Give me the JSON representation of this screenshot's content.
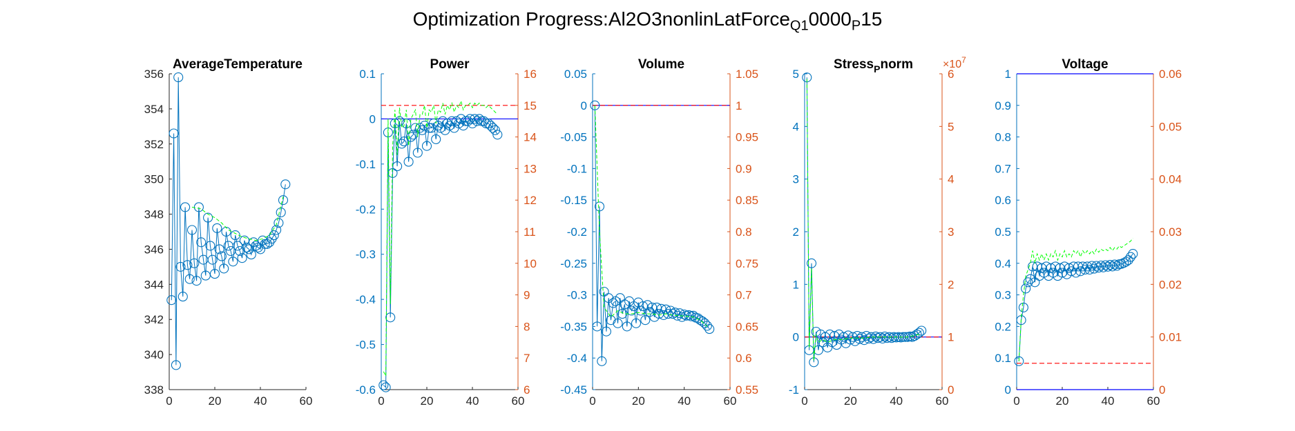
{
  "figure": {
    "title_prefix": "Optimization Progress:Al2O3nonlinLatForce",
    "title_sub1": "Q1",
    "title_mid": "0000",
    "title_sub2": "P",
    "title_suffix": "15"
  },
  "colors": {
    "left_axis": "#0072BD",
    "right_axis": "#D95319",
    "marker_line": "#0072BD",
    "green_dash": "#00FF00",
    "blue_line": "#0000FF",
    "red_dash": "#FF0000"
  },
  "chart_data": [
    {
      "type": "line",
      "title": "AverageTemperature",
      "xlim": [
        0,
        60
      ],
      "xticks": [
        0,
        20,
        40,
        60
      ],
      "ylim": [
        338,
        356
      ],
      "yticks": [
        338,
        340,
        342,
        344,
        346,
        348,
        350,
        352,
        354,
        356
      ],
      "series": [
        {
          "kind": "markers",
          "x": [
            1,
            2,
            3,
            4,
            5,
            6,
            7,
            8,
            9,
            10,
            11,
            12,
            13,
            14,
            15,
            16,
            17,
            18,
            19,
            20,
            21,
            22,
            23,
            24,
            25,
            26,
            27,
            28,
            29,
            30,
            31,
            32,
            33,
            34,
            35,
            36,
            37,
            38,
            39,
            40,
            41,
            42,
            43,
            44,
            45,
            46,
            47,
            48,
            49,
            50,
            51
          ],
          "y": [
            343.1,
            352.6,
            339.4,
            355.8,
            345.0,
            343.3,
            348.4,
            345.1,
            344.3,
            347.1,
            345.2,
            344.2,
            348.4,
            346.4,
            345.4,
            344.5,
            347.8,
            346.2,
            345.4,
            344.6,
            347.2,
            346.0,
            345.6,
            344.9,
            347.0,
            346.2,
            345.9,
            345.3,
            346.8,
            346.2,
            345.9,
            345.5,
            346.5,
            346.1,
            346.0,
            345.7,
            346.4,
            346.2,
            346.1,
            346.0,
            346.5,
            346.3,
            346.3,
            346.4,
            346.6,
            346.8,
            347.1,
            347.5,
            348.1,
            348.8,
            349.7
          ]
        },
        {
          "kind": "dash",
          "x": [
            10,
            14,
            17,
            20,
            23,
            26,
            29,
            32,
            35,
            38,
            41,
            44,
            47,
            50
          ],
          "y": [
            348.4,
            348.3,
            348.0,
            347.8,
            347.5,
            347.1,
            346.9,
            346.7,
            346.6,
            346.5,
            346.6,
            346.8,
            347.4,
            349.0
          ]
        }
      ]
    },
    {
      "type": "line",
      "title": "Power",
      "xlim": [
        0,
        60
      ],
      "xticks": [
        0,
        20,
        40,
        60
      ],
      "ylim": [
        -0.6,
        0.1
      ],
      "yticks": [
        -0.6,
        -0.5,
        -0.4,
        -0.3,
        -0.2,
        -0.1,
        0,
        0.1
      ],
      "y2lim": [
        6,
        16
      ],
      "y2ticks": [
        6,
        7,
        8,
        9,
        10,
        11,
        12,
        13,
        14,
        15,
        16
      ],
      "hline_left": 0,
      "hline_right_dashed": 15,
      "series": [
        {
          "kind": "markers",
          "x": [
            1,
            2,
            3,
            4,
            5,
            6,
            7,
            8,
            9,
            10,
            11,
            12,
            13,
            14,
            15,
            16,
            17,
            18,
            19,
            20,
            21,
            22,
            23,
            24,
            25,
            26,
            27,
            28,
            29,
            30,
            31,
            32,
            33,
            34,
            35,
            36,
            37,
            38,
            39,
            40,
            41,
            42,
            43,
            44,
            45,
            46,
            47,
            48,
            49,
            50,
            51
          ],
          "y": [
            -0.59,
            -0.595,
            -0.03,
            -0.44,
            -0.12,
            -0.01,
            -0.105,
            -0.005,
            -0.055,
            -0.05,
            -0.01,
            -0.095,
            -0.04,
            -0.035,
            -0.02,
            -0.075,
            -0.02,
            -0.025,
            -0.015,
            -0.06,
            -0.02,
            -0.02,
            -0.01,
            -0.045,
            -0.015,
            -0.02,
            -0.005,
            -0.025,
            -0.01,
            -0.015,
            -0.005,
            -0.02,
            -0.005,
            -0.01,
            0.0,
            -0.015,
            -0.005,
            -0.005,
            0.0,
            -0.01,
            0.0,
            -0.005,
            0.0,
            -0.005,
            -0.005,
            -0.01,
            -0.01,
            -0.015,
            -0.02,
            -0.025,
            -0.035
          ]
        },
        {
          "kind": "dash",
          "x": [
            1,
            2,
            3,
            4,
            5,
            6,
            7,
            8,
            9,
            10,
            11,
            12,
            13,
            14,
            15,
            16,
            17,
            18,
            19,
            20,
            21,
            22,
            23,
            24,
            25,
            26,
            27,
            28,
            29,
            30,
            31,
            32,
            33,
            34,
            35,
            36,
            37,
            38,
            39,
            40,
            41,
            42,
            43,
            44,
            45,
            46,
            47,
            48,
            49,
            50,
            51
          ],
          "y": [
            -0.56,
            -0.57,
            0.0,
            -0.41,
            -0.06,
            0.02,
            -0.08,
            0.025,
            -0.02,
            -0.015,
            0.02,
            -0.06,
            0.0,
            0.01,
            0.02,
            -0.04,
            0.01,
            0.01,
            0.03,
            -0.02,
            0.02,
            0.015,
            0.03,
            -0.01,
            0.02,
            0.015,
            0.035,
            0.01,
            0.03,
            0.02,
            0.035,
            0.015,
            0.03,
            0.025,
            0.04,
            0.02,
            0.03,
            0.03,
            0.035,
            0.025,
            0.035,
            0.03,
            0.035,
            0.03,
            0.03,
            0.025,
            0.03,
            0.025,
            0.02,
            0.015,
            0.01
          ]
        }
      ]
    },
    {
      "type": "line",
      "title": "Volume",
      "xlim": [
        0,
        60
      ],
      "xticks": [
        0,
        20,
        40,
        60
      ],
      "ylim": [
        -0.45,
        0.05
      ],
      "yticks": [
        -0.45,
        -0.4,
        -0.35,
        -0.3,
        -0.25,
        -0.2,
        -0.15,
        -0.1,
        -0.05,
        0,
        0.05
      ],
      "y2lim": [
        0.55,
        1.05
      ],
      "y2ticks": [
        0.55,
        0.6,
        0.65,
        0.7,
        0.75,
        0.8,
        0.85,
        0.9,
        0.95,
        1,
        1.05
      ],
      "hline_left": 0,
      "hline_right_dashed": 1,
      "series": [
        {
          "kind": "markers",
          "x": [
            1,
            2,
            3,
            4,
            5,
            6,
            7,
            8,
            9,
            10,
            11,
            12,
            13,
            14,
            15,
            16,
            17,
            18,
            19,
            20,
            21,
            22,
            23,
            24,
            25,
            26,
            27,
            28,
            29,
            30,
            31,
            32,
            33,
            34,
            35,
            36,
            37,
            38,
            39,
            40,
            41,
            42,
            43,
            44,
            45,
            46,
            47,
            48,
            49,
            50,
            51
          ],
          "y": [
            0.0,
            -0.35,
            -0.16,
            -0.405,
            -0.295,
            -0.358,
            -0.305,
            -0.34,
            -0.313,
            -0.31,
            -0.345,
            -0.305,
            -0.33,
            -0.315,
            -0.35,
            -0.31,
            -0.325,
            -0.318,
            -0.345,
            -0.312,
            -0.325,
            -0.318,
            -0.34,
            -0.316,
            -0.327,
            -0.32,
            -0.335,
            -0.32,
            -0.33,
            -0.322,
            -0.332,
            -0.323,
            -0.33,
            -0.325,
            -0.33,
            -0.328,
            -0.333,
            -0.329,
            -0.335,
            -0.331,
            -0.333,
            -0.332,
            -0.334,
            -0.333,
            -0.336,
            -0.337,
            -0.34,
            -0.342,
            -0.345,
            -0.349,
            -0.354
          ]
        },
        {
          "kind": "dash",
          "x": [
            1,
            3,
            5,
            8,
            11,
            14,
            17,
            20,
            23,
            26,
            29,
            32,
            35,
            38,
            41,
            44,
            47,
            50
          ],
          "y": [
            0.0,
            -0.2,
            -0.32,
            -0.335,
            -0.325,
            -0.33,
            -0.33,
            -0.328,
            -0.33,
            -0.33,
            -0.332,
            -0.33,
            -0.332,
            -0.333,
            -0.334,
            -0.335,
            -0.34,
            -0.35
          ]
        }
      ]
    },
    {
      "type": "line",
      "title": "Stress",
      "title_sub": "P",
      "title_after": "norm",
      "exponent_label": "×10",
      "exponent_power": "7",
      "xlim": [
        0,
        60
      ],
      "xticks": [
        0,
        20,
        40,
        60
      ],
      "ylim": [
        -1,
        5
      ],
      "yticks": [
        -1,
        0,
        1,
        2,
        3,
        4,
        5
      ],
      "y2lim": [
        0,
        6
      ],
      "y2ticks": [
        0,
        1,
        2,
        3,
        4,
        5,
        6
      ],
      "hline_left": 0,
      "hline_right_dashed": 1,
      "series": [
        {
          "kind": "markers",
          "x": [
            1,
            2,
            3,
            4,
            5,
            6,
            7,
            8,
            9,
            10,
            11,
            12,
            13,
            14,
            15,
            16,
            17,
            18,
            19,
            20,
            21,
            22,
            23,
            24,
            25,
            26,
            27,
            28,
            29,
            30,
            31,
            32,
            33,
            34,
            35,
            36,
            37,
            38,
            39,
            40,
            41,
            42,
            43,
            44,
            45,
            46,
            47,
            48,
            49,
            50,
            51
          ],
          "y": [
            4.93,
            -0.25,
            1.4,
            -0.48,
            0.1,
            -0.25,
            0.05,
            -0.1,
            0.0,
            -0.2,
            0.05,
            -0.1,
            0.02,
            -0.15,
            0.05,
            -0.05,
            0.0,
            -0.12,
            0.03,
            -0.05,
            0.0,
            -0.08,
            0.02,
            -0.04,
            0.0,
            -0.06,
            0.02,
            -0.03,
            0.0,
            -0.04,
            0.01,
            -0.02,
            0.0,
            -0.03,
            0.01,
            -0.02,
            0.0,
            -0.02,
            0.0,
            -0.01,
            0.0,
            -0.01,
            0.0,
            0.0,
            0.0,
            0.01,
            0.0,
            0.02,
            0.05,
            0.08,
            0.12
          ]
        },
        {
          "kind": "dash",
          "x": [
            1,
            2,
            3,
            4,
            5,
            6,
            8,
            10,
            13,
            16,
            20,
            25,
            30,
            35,
            40,
            45,
            50
          ],
          "y": [
            4.9,
            -0.2,
            1.3,
            -0.45,
            0.05,
            -0.1,
            -0.05,
            -0.1,
            -0.05,
            -0.05,
            -0.02,
            -0.02,
            0.0,
            0.0,
            0.0,
            0.0,
            0.05
          ]
        }
      ]
    },
    {
      "type": "line",
      "title": "Voltage",
      "xlim": [
        0,
        60
      ],
      "xticks": [
        0,
        20,
        40,
        60
      ],
      "ylim": [
        0,
        1
      ],
      "yticks": [
        0,
        0.1,
        0.2,
        0.3,
        0.4,
        0.5,
        0.6,
        0.7,
        0.8,
        0.9,
        1
      ],
      "y2lim": [
        0,
        0.06
      ],
      "y2ticks": [
        0,
        0.01,
        0.02,
        0.03,
        0.04,
        0.05,
        0.06
      ],
      "hline_left": 1,
      "hline_left_bottom": 0,
      "hline_right_dashed": 0.005,
      "series": [
        {
          "kind": "markers",
          "x": [
            1,
            2,
            3,
            4,
            5,
            6,
            7,
            8,
            9,
            10,
            11,
            12,
            13,
            14,
            15,
            16,
            17,
            18,
            19,
            20,
            21,
            22,
            23,
            24,
            25,
            26,
            27,
            28,
            29,
            30,
            31,
            32,
            33,
            34,
            35,
            36,
            37,
            38,
            39,
            40,
            41,
            42,
            43,
            44,
            45,
            46,
            47,
            48,
            49,
            50,
            51
          ],
          "y": [
            0.09,
            0.22,
            0.26,
            0.32,
            0.34,
            0.35,
            0.39,
            0.34,
            0.39,
            0.36,
            0.385,
            0.37,
            0.39,
            0.36,
            0.385,
            0.37,
            0.39,
            0.36,
            0.385,
            0.37,
            0.39,
            0.365,
            0.385,
            0.375,
            0.39,
            0.37,
            0.39,
            0.375,
            0.39,
            0.38,
            0.39,
            0.38,
            0.392,
            0.383,
            0.392,
            0.386,
            0.393,
            0.387,
            0.394,
            0.389,
            0.395,
            0.39,
            0.396,
            0.392,
            0.397,
            0.398,
            0.401,
            0.405,
            0.41,
            0.42,
            0.43
          ]
        },
        {
          "kind": "dash",
          "x": [
            1,
            2,
            3,
            4,
            5,
            6,
            7,
            8,
            9,
            10,
            11,
            12,
            13,
            14,
            15,
            16,
            17,
            18,
            19,
            20,
            21,
            22,
            23,
            24,
            25,
            26,
            27,
            28,
            29,
            30,
            31,
            32,
            33,
            34,
            35,
            36,
            37,
            38,
            39,
            40,
            41,
            42,
            43,
            44,
            45,
            46,
            47,
            48,
            49,
            50,
            51
          ],
          "y": [
            0.09,
            0.23,
            0.3,
            0.36,
            0.38,
            0.4,
            0.44,
            0.4,
            0.43,
            0.41,
            0.43,
            0.41,
            0.43,
            0.41,
            0.43,
            0.42,
            0.44,
            0.41,
            0.43,
            0.42,
            0.44,
            0.42,
            0.43,
            0.42,
            0.44,
            0.43,
            0.44,
            0.42,
            0.44,
            0.43,
            0.44,
            0.43,
            0.44,
            0.43,
            0.445,
            0.435,
            0.445,
            0.44,
            0.445,
            0.44,
            0.45,
            0.44,
            0.45,
            0.445,
            0.455,
            0.45,
            0.455,
            0.46,
            0.465,
            0.47,
            0.48
          ]
        }
      ]
    }
  ]
}
